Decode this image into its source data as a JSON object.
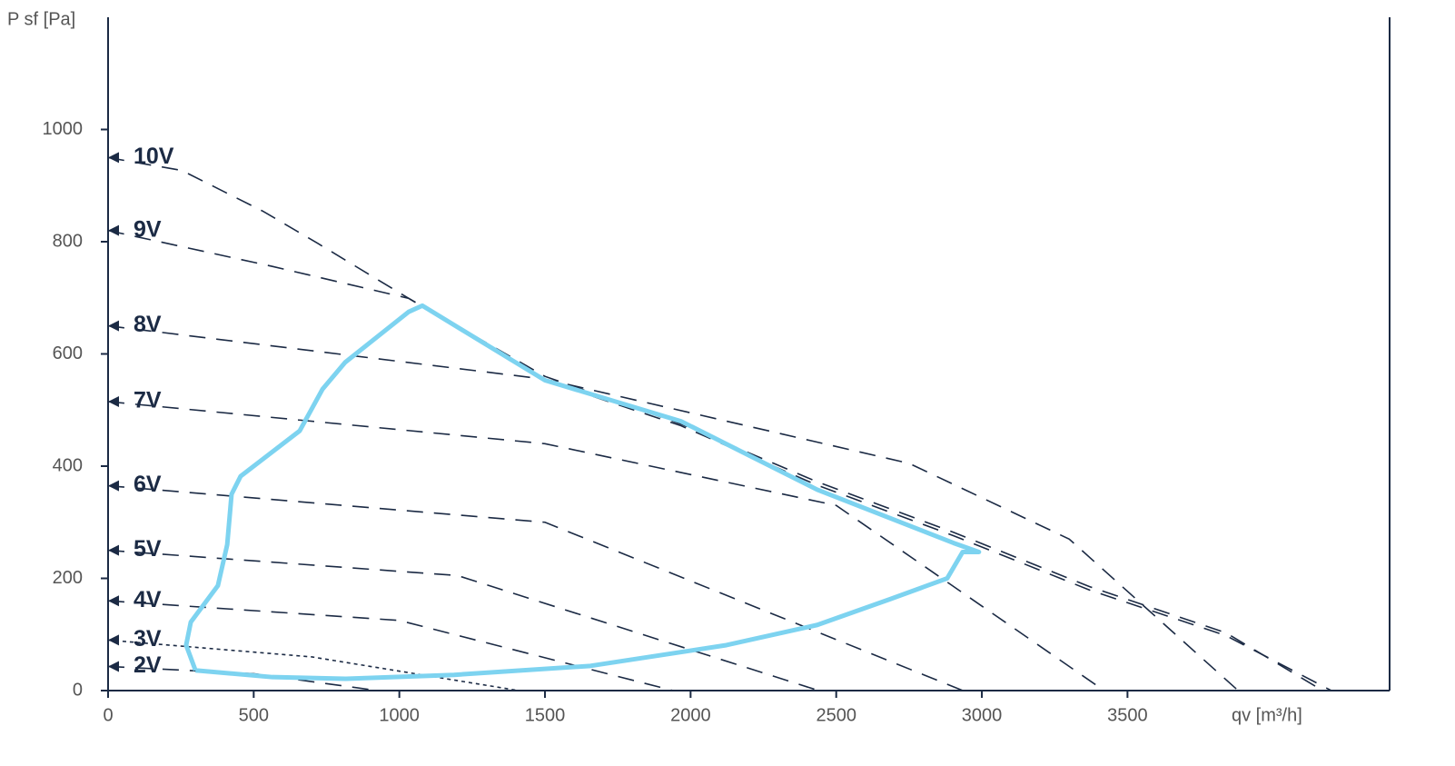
{
  "chart_data": {
    "type": "line",
    "y_label": "P sf [Pa]",
    "x_label": "qv [m³/h]",
    "xlim": [
      0,
      4400
    ],
    "ylim": [
      0,
      1200
    ],
    "xticks": [
      0,
      500,
      1000,
      1500,
      2000,
      2500,
      3000,
      3500
    ],
    "yticks": [
      0,
      200,
      400,
      600,
      800,
      1000
    ],
    "series": [
      {
        "name": "10V",
        "color": "#1b2a44",
        "dash": "dashed",
        "x": [
          0,
          253,
          533,
          720,
          1032,
          1500,
          1967,
          2435,
          2903,
          3371,
          3838,
          4200
        ],
        "values": [
          950,
          927,
          854,
          797,
          699,
          553,
          472,
          366,
          276,
          179,
          98,
          0
        ]
      },
      {
        "name": "9V",
        "color": "#1b2a44",
        "dash": "dashed",
        "x": [
          0,
          564,
          1032,
          1500,
          1967,
          2435,
          2903,
          3371,
          3838,
          4170
        ],
        "values": [
          820,
          756,
          699,
          560,
          475,
          372,
          282,
          185,
          103,
          0
        ]
      },
      {
        "name": "8V",
        "color": "#1b2a44",
        "dash": "dashed",
        "x": [
          0,
          1500,
          2750,
          3300,
          3880
        ],
        "values": [
          650,
          555,
          405,
          270,
          0
        ]
      },
      {
        "name": "7V",
        "color": "#1b2a44",
        "dash": "dashed",
        "x": [
          0,
          1500,
          2500,
          3420
        ],
        "values": [
          515,
          440,
          330,
          0
        ]
      },
      {
        "name": "6V",
        "color": "#1b2a44",
        "dash": "dashed",
        "x": [
          0,
          1500,
          2935
        ],
        "values": [
          365,
          300,
          0
        ]
      },
      {
        "name": "5V",
        "color": "#1b2a44",
        "dash": "dashed",
        "x": [
          0,
          1200,
          2440
        ],
        "values": [
          250,
          205,
          0
        ]
      },
      {
        "name": "4V",
        "color": "#1b2a44",
        "dash": "dashed",
        "x": [
          0,
          1000,
          1940
        ],
        "values": [
          160,
          125,
          0
        ]
      },
      {
        "name": "3V",
        "color": "#1b2a44",
        "dash": "dotted",
        "x": [
          0,
          700,
          1410
        ],
        "values": [
          90,
          60,
          0
        ]
      },
      {
        "name": "2V",
        "color": "#1b2a44",
        "dash": "dashed",
        "x": [
          0,
          500,
          925
        ],
        "values": [
          43,
          30,
          0
        ]
      }
    ],
    "envelope": {
      "color": "#7dd3f0",
      "x": [
        300,
        268,
        284,
        377,
        409,
        424,
        455,
        658,
        736,
        814,
        1032,
        1079,
        1500,
        1967,
        2435,
        2903,
        2990,
        2934,
        2881,
        2685,
        2435,
        2123,
        1656,
        1188,
        814,
        564,
        300
      ],
      "values": [
        36,
        81,
        122,
        187,
        260,
        350,
        382,
        463,
        537,
        585,
        675,
        686,
        553,
        480,
        358,
        263,
        247,
        247,
        200,
        163,
        117,
        81,
        44,
        28,
        21,
        24,
        36
      ]
    }
  }
}
